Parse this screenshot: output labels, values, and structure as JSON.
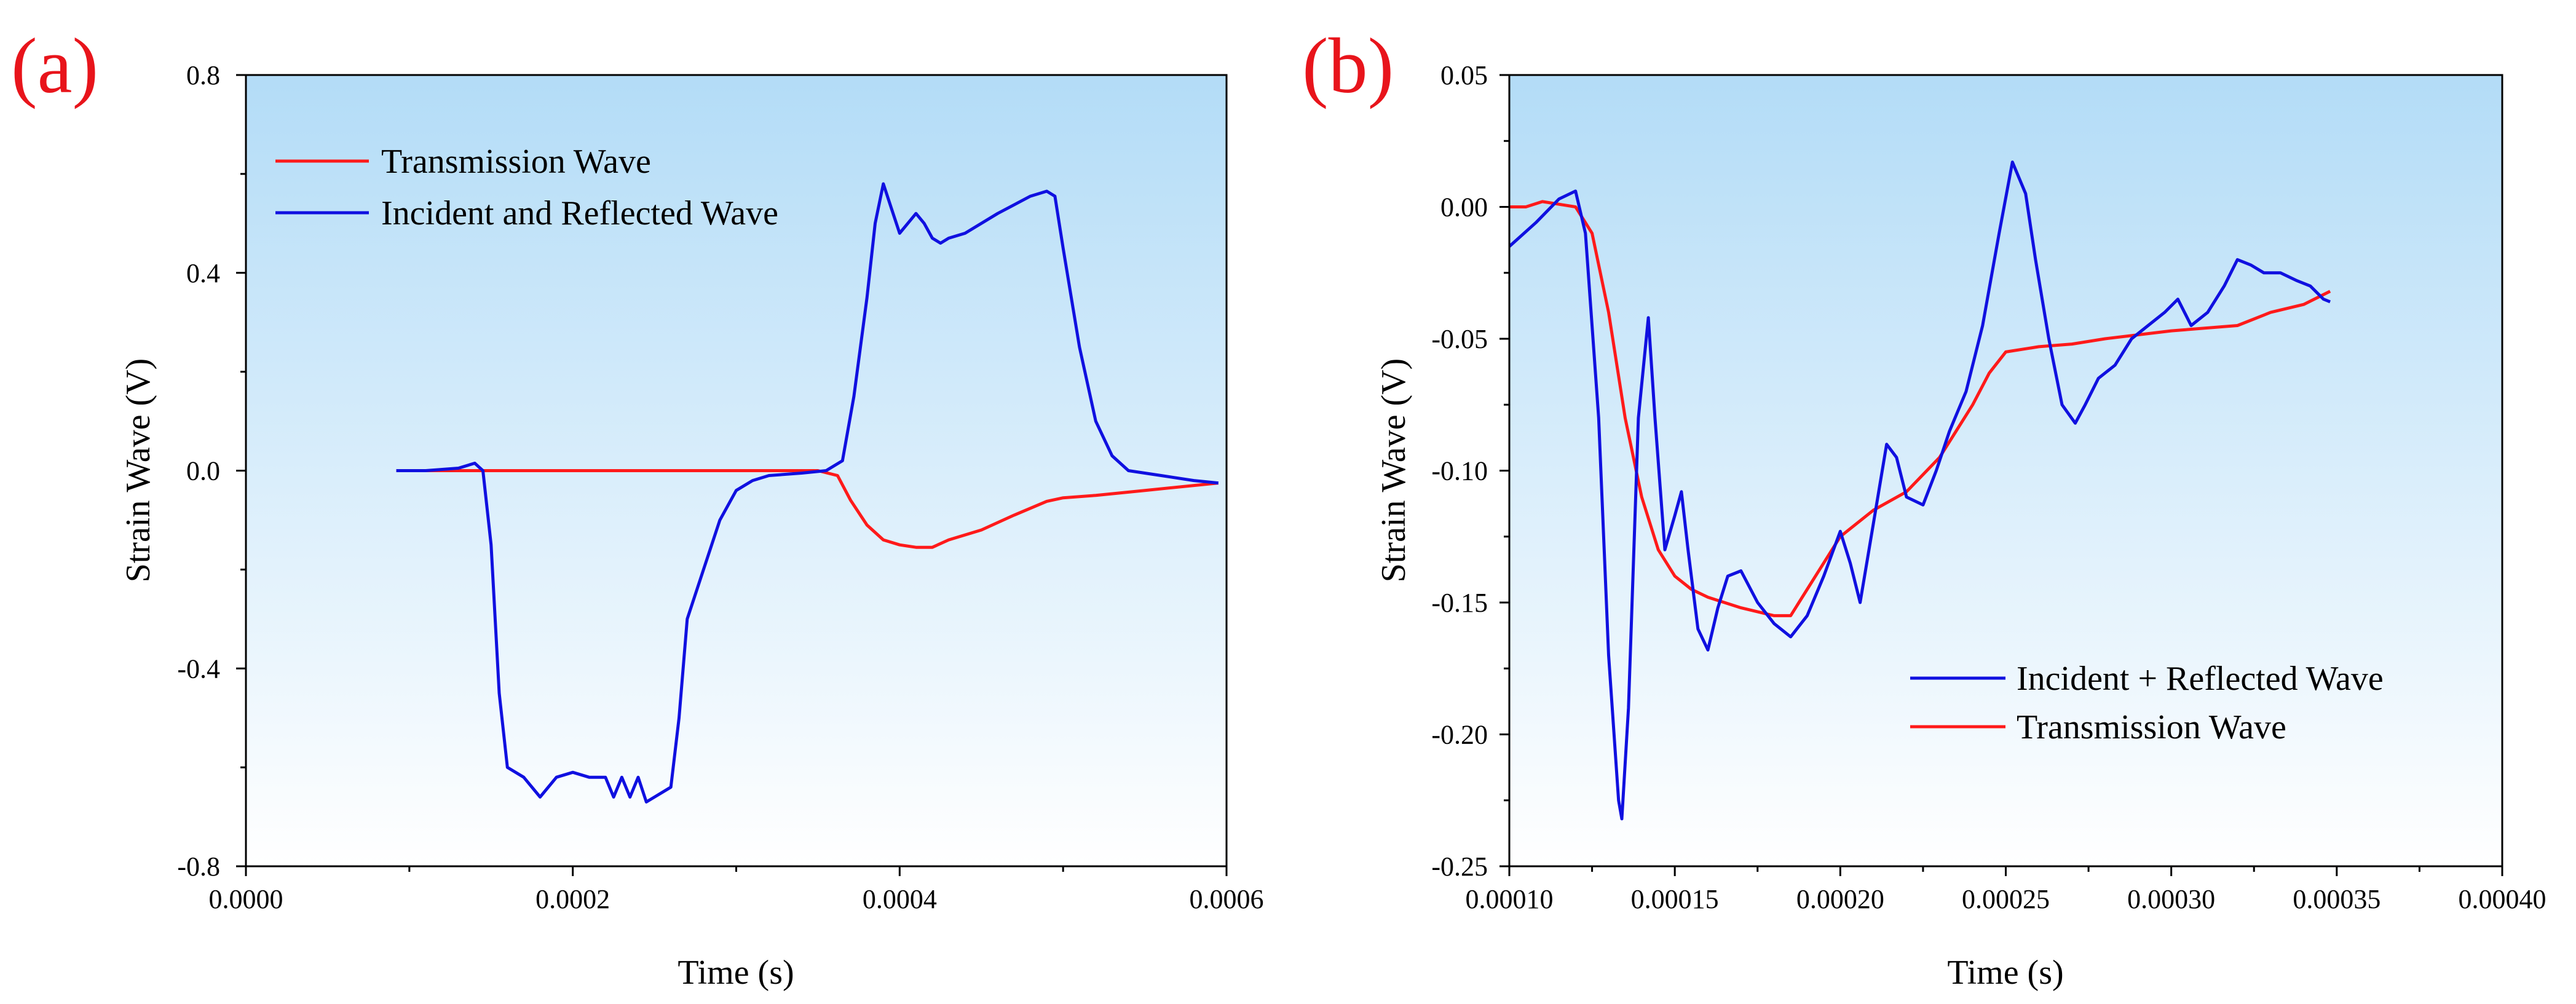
{
  "colors": {
    "red": "#ff1a1a",
    "blue": "#1010e0",
    "tag": "#e8141b",
    "bg_top": "#b3dcf7",
    "bg_bottom": "#ffffff"
  },
  "chart_data": [
    {
      "panel": "(a)",
      "type": "line",
      "xlabel": "Time (s)",
      "ylabel": "Strain Wave (V)",
      "xlim": [
        0.0,
        0.0006
      ],
      "ylim": [
        -0.8,
        0.8
      ],
      "xticks": [
        0.0,
        0.0002,
        0.0004,
        0.0006
      ],
      "xtick_labels": [
        "0.0000",
        "0.0002",
        "0.0004",
        "0.0006"
      ],
      "yticks": [
        -0.8,
        -0.4,
        0.0,
        0.4,
        0.8
      ],
      "ytick_labels": [
        "-0.8",
        "-0.4",
        "0.0",
        "0.4",
        "0.8"
      ],
      "legend_position": "top-left",
      "series": [
        {
          "name": "Transmission Wave",
          "color": "#ff1a1a",
          "x": [
            9.2e-05,
            0.00012,
            0.00016,
            0.0002,
            0.00024,
            0.00028,
            0.00032,
            0.00035,
            0.000362,
            0.00037,
            0.00038,
            0.00039,
            0.0004,
            0.00041,
            0.00042,
            0.00043,
            0.00045,
            0.00047,
            0.00049,
            0.0005,
            0.00052,
            0.00055,
            0.000595
          ],
          "y": [
            0.0,
            0.0,
            0.0,
            0.0,
            0.0,
            0.0,
            0.0,
            0.0,
            -0.01,
            -0.06,
            -0.11,
            -0.14,
            -0.15,
            -0.155,
            -0.155,
            -0.14,
            -0.12,
            -0.09,
            -0.062,
            -0.055,
            -0.05,
            -0.04,
            -0.025
          ]
        },
        {
          "name": "Incident and Reflected Wave",
          "color": "#1010e0",
          "x": [
            9.2e-05,
            0.00011,
            0.00013,
            0.00014,
            0.000145,
            0.00015,
            0.000155,
            0.00016,
            0.00017,
            0.00018,
            0.00019,
            0.0002,
            0.00021,
            0.00022,
            0.000225,
            0.00023,
            0.000235,
            0.00024,
            0.000245,
            0.00025,
            0.00026,
            0.000265,
            0.00027,
            0.00028,
            0.00029,
            0.0003,
            0.00031,
            0.00032,
            0.00034,
            0.000355,
            0.000365,
            0.000372,
            0.00038,
            0.000385,
            0.00039,
            0.000395,
            0.0004,
            0.000405,
            0.00041,
            0.000415,
            0.00042,
            0.000425,
            0.00043,
            0.00044,
            0.00046,
            0.00048,
            0.00049,
            0.000495,
            0.0005,
            0.00051,
            0.00052,
            0.00053,
            0.00054,
            0.00056,
            0.00058,
            0.000595
          ],
          "y": [
            0.0,
            0.0,
            0.005,
            0.015,
            0.0,
            -0.15,
            -0.45,
            -0.6,
            -0.62,
            -0.66,
            -0.62,
            -0.61,
            -0.62,
            -0.62,
            -0.66,
            -0.62,
            -0.66,
            -0.62,
            -0.67,
            -0.66,
            -0.64,
            -0.5,
            -0.3,
            -0.2,
            -0.1,
            -0.04,
            -0.02,
            -0.01,
            -0.005,
            0.0,
            0.02,
            0.15,
            0.35,
            0.5,
            0.58,
            0.53,
            0.48,
            0.5,
            0.52,
            0.5,
            0.47,
            0.46,
            0.47,
            0.48,
            0.52,
            0.555,
            0.565,
            0.555,
            0.45,
            0.25,
            0.1,
            0.03,
            0.0,
            -0.01,
            -0.02,
            -0.025
          ]
        }
      ]
    },
    {
      "panel": "(b)",
      "type": "line",
      "xlabel": "Time (s)",
      "ylabel": "Strain Wave (V)",
      "xlim": [
        0.0001,
        0.0004
      ],
      "ylim": [
        -0.25,
        0.05
      ],
      "xticks": [
        0.0001,
        0.00015,
        0.0002,
        0.00025,
        0.0003,
        0.00035,
        0.0004
      ],
      "xtick_labels": [
        "0.00010",
        "0.00015",
        "0.00020",
        "0.00025",
        "0.00030",
        "0.00035",
        "0.00040"
      ],
      "yticks": [
        -0.25,
        -0.2,
        -0.15,
        -0.1,
        -0.05,
        0.0,
        0.05
      ],
      "ytick_labels": [
        "-0.25",
        "-0.20",
        "-0.15",
        "-0.10",
        "-0.05",
        "0.00",
        "0.05"
      ],
      "legend_position": "bottom-right",
      "series": [
        {
          "name": "Incident + Reflected Wave",
          "color": "#1010e0",
          "x": [
            0.0001,
            0.000108,
            0.000115,
            0.00012,
            0.000123,
            0.000127,
            0.00013,
            0.000133,
            0.000134,
            0.000136,
            0.000139,
            0.000142,
            0.000144,
            0.000147,
            0.00015,
            0.000152,
            0.000154,
            0.000157,
            0.00016,
            0.000163,
            0.000166,
            0.00017,
            0.000175,
            0.00018,
            0.000185,
            0.00019,
            0.000195,
            0.0002,
            0.000203,
            0.000206,
            0.00021,
            0.000214,
            0.000217,
            0.00022,
            0.000225,
            0.000229,
            0.000233,
            0.000238,
            0.000243,
            0.000248,
            0.000252,
            0.000256,
            0.000259,
            0.000263,
            0.000267,
            0.000271,
            0.000274,
            0.000278,
            0.000283,
            0.000288,
            0.000293,
            0.000298,
            0.000302,
            0.000306,
            0.000311,
            0.000316,
            0.00032,
            0.000324,
            0.000328,
            0.000333,
            0.000338,
            0.000342,
            0.000346,
            0.000348
          ],
          "y": [
            -0.015,
            -0.006,
            0.003,
            0.006,
            -0.01,
            -0.08,
            -0.17,
            -0.225,
            -0.232,
            -0.19,
            -0.08,
            -0.042,
            -0.08,
            -0.13,
            -0.117,
            -0.108,
            -0.13,
            -0.16,
            -0.168,
            -0.152,
            -0.14,
            -0.138,
            -0.15,
            -0.158,
            -0.163,
            -0.155,
            -0.14,
            -0.123,
            -0.135,
            -0.15,
            -0.12,
            -0.09,
            -0.095,
            -0.11,
            -0.113,
            -0.1,
            -0.085,
            -0.07,
            -0.045,
            -0.01,
            0.017,
            0.005,
            -0.02,
            -0.05,
            -0.075,
            -0.082,
            -0.075,
            -0.065,
            -0.06,
            -0.05,
            -0.045,
            -0.04,
            -0.035,
            -0.045,
            -0.04,
            -0.03,
            -0.02,
            -0.022,
            -0.025,
            -0.025,
            -0.028,
            -0.03,
            -0.035,
            -0.036
          ]
        },
        {
          "name": "Transmission Wave",
          "color": "#ff1a1a",
          "x": [
            0.0001,
            0.000105,
            0.00011,
            0.000115,
            0.00012,
            0.000125,
            0.00013,
            0.000135,
            0.00014,
            0.000145,
            0.00015,
            0.000155,
            0.00016,
            0.00017,
            0.00018,
            0.000185,
            0.00019,
            0.000195,
            0.0002,
            0.00021,
            0.00022,
            0.00023,
            0.00024,
            0.000245,
            0.00025,
            0.00026,
            0.00027,
            0.00028,
            0.0003,
            0.00032,
            0.00033,
            0.00034,
            0.000348
          ],
          "y": [
            0.0,
            0.0,
            0.002,
            0.001,
            0.0,
            -0.01,
            -0.04,
            -0.08,
            -0.11,
            -0.13,
            -0.14,
            -0.145,
            -0.148,
            -0.152,
            -0.155,
            -0.155,
            -0.145,
            -0.135,
            -0.125,
            -0.115,
            -0.108,
            -0.095,
            -0.075,
            -0.063,
            -0.055,
            -0.053,
            -0.052,
            -0.05,
            -0.047,
            -0.045,
            -0.04,
            -0.037,
            -0.032
          ]
        }
      ]
    }
  ]
}
